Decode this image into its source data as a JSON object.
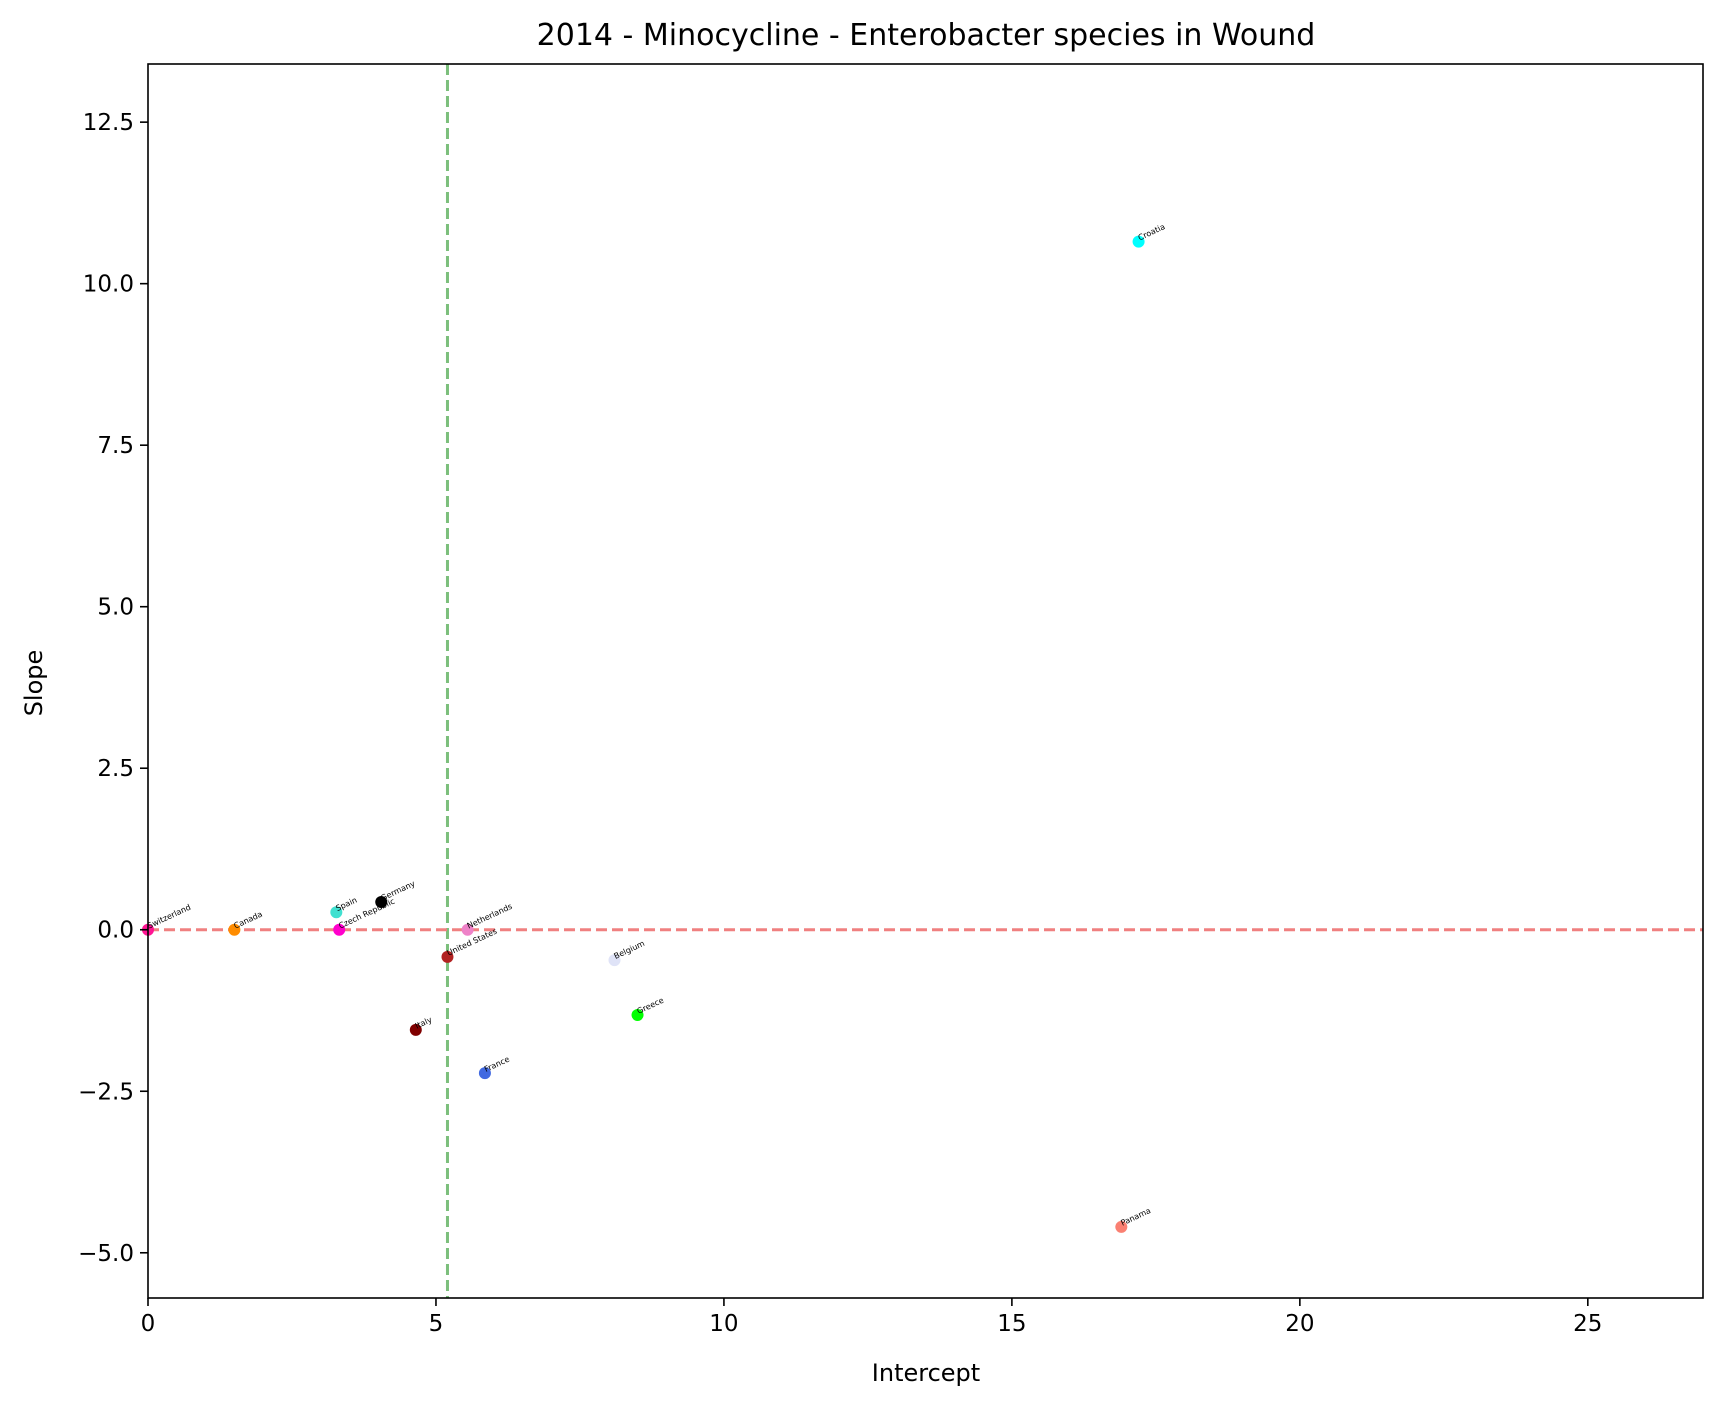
{
  "chart_data": {
    "type": "scatter",
    "title": "2014 - Minocycline - Enterobacter species in Wound",
    "xlabel": "Intercept",
    "ylabel": "Slope",
    "xlim": [
      0,
      27
    ],
    "ylim": [
      -5.7,
      13.4
    ],
    "xticks": [
      0,
      5,
      10,
      15,
      20,
      25
    ],
    "xtick_labels": [
      "0",
      "5",
      "10",
      "15",
      "20",
      "25"
    ],
    "yticks": [
      -5.0,
      -2.5,
      0.0,
      2.5,
      5.0,
      7.5,
      10.0,
      12.5
    ],
    "ytick_labels": [
      "−5.0",
      "−2.5",
      "0.0",
      "2.5",
      "5.0",
      "7.5",
      "10.0",
      "12.5"
    ],
    "grid": false,
    "reference_lines": [
      {
        "orientation": "vertical",
        "value": 5.2,
        "color": "#7cbf7c",
        "style": "dashed"
      },
      {
        "orientation": "horizontal",
        "value": 0.0,
        "color": "#f08080",
        "style": "dashed"
      }
    ],
    "points": [
      {
        "label": "Switzerland",
        "x": 0.0,
        "y": 0.0,
        "color": "#ff1493"
      },
      {
        "label": "Canada",
        "x": 1.5,
        "y": 0.0,
        "color": "#ff8c00"
      },
      {
        "label": "Spain",
        "x": 3.27,
        "y": 0.27,
        "color": "#40e0d0"
      },
      {
        "label": "Czech Republic",
        "x": 3.32,
        "y": 0.0,
        "color": "#ff00cc"
      },
      {
        "label": "Germany",
        "x": 4.05,
        "y": 0.43,
        "color": "#000000"
      },
      {
        "label": "Netherlands",
        "x": 5.55,
        "y": 0.0,
        "color": "#ee82c8"
      },
      {
        "label": "United States",
        "x": 5.2,
        "y": -0.42,
        "color": "#b22222"
      },
      {
        "label": "Italy",
        "x": 4.65,
        "y": -1.55,
        "color": "#800000"
      },
      {
        "label": "France",
        "x": 5.85,
        "y": -2.22,
        "color": "#4169e1"
      },
      {
        "label": "Belgium",
        "x": 8.1,
        "y": -0.47,
        "color": "#dfe3f7"
      },
      {
        "label": "Greece",
        "x": 8.5,
        "y": -1.32,
        "color": "#00ff00"
      },
      {
        "label": "Croatia",
        "x": 17.2,
        "y": 10.65,
        "color": "#00ffff"
      },
      {
        "label": "Panama",
        "x": 16.9,
        "y": -4.6,
        "color": "#fa8072"
      }
    ]
  }
}
